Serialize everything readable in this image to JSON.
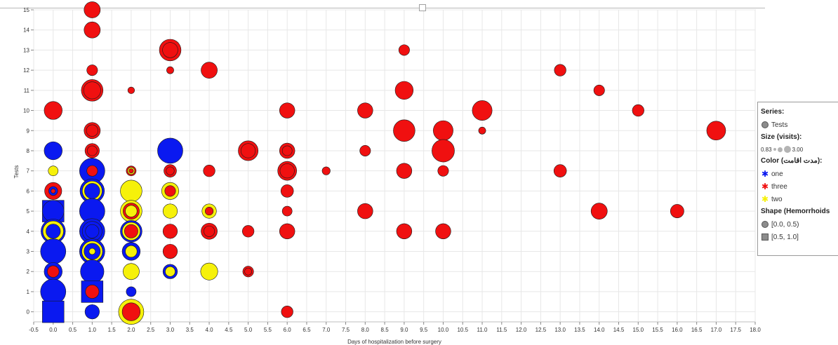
{
  "chart_data": {
    "type": "scatter",
    "xlabel": "Days of hospitalization before surgery",
    "ylabel": "Tests",
    "xlim": [
      -0.5,
      18.0
    ],
    "ylim": [
      -0.5,
      15
    ],
    "x_ticks": [
      "-0.5",
      "0.0",
      "0.5",
      "1.0",
      "1.5",
      "2.0",
      "2.5",
      "3.0",
      "3.5",
      "4.0",
      "4.5",
      "5.0",
      "5.5",
      "6.0",
      "6.5",
      "7.0",
      "7.5",
      "8.0",
      "8.5",
      "9.0",
      "9.5",
      "10.0",
      "10.5",
      "11.0",
      "11.5",
      "12.0",
      "12.5",
      "13.0",
      "13.5",
      "14.0",
      "14.5",
      "15.0",
      "15.5",
      "16.0",
      "16.5",
      "17.0",
      "17.5",
      "18.0"
    ],
    "y_ticks": [
      "0",
      "1",
      "2",
      "3",
      "4",
      "5",
      "6",
      "7",
      "8",
      "9",
      "10",
      "11",
      "12",
      "13",
      "14",
      "15"
    ],
    "grid": true,
    "legend_position": "right",
    "colors": {
      "one": "#0a19f0",
      "three": "#f01010",
      "two": "#f6f10a"
    },
    "size_range": [
      0.83,
      3.0
    ],
    "points": [
      {
        "x": 0,
        "y": 10,
        "c": "three",
        "s": 2.2
      },
      {
        "x": 0,
        "y": 8,
        "c": "one",
        "s": 2.2
      },
      {
        "x": 0,
        "y": 7,
        "c": "two",
        "s": 1.3
      },
      {
        "x": 0,
        "y": 6,
        "c": "three",
        "s": 2.1
      },
      {
        "x": 0,
        "y": 6,
        "c": "one",
        "s": 1.2
      },
      {
        "x": 0,
        "y": 6,
        "c": "three",
        "s": 0.7
      },
      {
        "x": 0,
        "y": 5,
        "c": "one",
        "s": 2.6,
        "shape": "square"
      },
      {
        "x": 0,
        "y": 5,
        "c": "one",
        "s": 2.6
      },
      {
        "x": 0,
        "y": 4,
        "c": "one",
        "s": 2.9
      },
      {
        "x": 0,
        "y": 4,
        "c": "two",
        "s": 2.5
      },
      {
        "x": 0,
        "y": 4,
        "c": "one",
        "s": 1.8
      },
      {
        "x": 0,
        "y": 3,
        "c": "one",
        "s": 3.0
      },
      {
        "x": 0,
        "y": 2,
        "c": "one",
        "s": 2.2
      },
      {
        "x": 0,
        "y": 2,
        "c": "three",
        "s": 1.5
      },
      {
        "x": 0,
        "y": 1,
        "c": "one",
        "s": 3.0
      },
      {
        "x": 0,
        "y": 0,
        "c": "one",
        "s": 2.6,
        "shape": "square"
      },
      {
        "x": 1,
        "y": 15,
        "c": "three",
        "s": 2.0
      },
      {
        "x": 1,
        "y": 14,
        "c": "three",
        "s": 2.0
      },
      {
        "x": 1,
        "y": 12,
        "c": "three",
        "s": 1.4
      },
      {
        "x": 1,
        "y": 11,
        "c": "three",
        "s": 2.6
      },
      {
        "x": 1,
        "y": 11,
        "c": "three",
        "s": 2.1
      },
      {
        "x": 1,
        "y": 9,
        "c": "three",
        "s": 2.0
      },
      {
        "x": 1,
        "y": 9,
        "c": "three",
        "s": 1.5
      },
      {
        "x": 1,
        "y": 8,
        "c": "three",
        "s": 1.8
      },
      {
        "x": 1,
        "y": 8,
        "c": "three",
        "s": 1.3
      },
      {
        "x": 1,
        "y": 7,
        "c": "one",
        "s": 3.0
      },
      {
        "x": 1,
        "y": 7,
        "c": "three",
        "s": 1.4
      },
      {
        "x": 1,
        "y": 6,
        "c": "one",
        "s": 2.9
      },
      {
        "x": 1,
        "y": 6,
        "c": "two",
        "s": 2.4
      },
      {
        "x": 1,
        "y": 6,
        "c": "one",
        "s": 1.9
      },
      {
        "x": 1,
        "y": 5,
        "c": "one",
        "s": 3.0
      },
      {
        "x": 1,
        "y": 4,
        "c": "one",
        "s": 3.0
      },
      {
        "x": 1,
        "y": 4,
        "c": "one",
        "s": 2.4
      },
      {
        "x": 1,
        "y": 4,
        "c": "one",
        "s": 1.7
      },
      {
        "x": 1,
        "y": 3,
        "c": "one",
        "s": 3.0
      },
      {
        "x": 1,
        "y": 3,
        "c": "two",
        "s": 2.5
      },
      {
        "x": 1,
        "y": 3,
        "c": "one",
        "s": 2.0
      },
      {
        "x": 1,
        "y": 3,
        "c": "two",
        "s": 0.9
      },
      {
        "x": 1,
        "y": 2,
        "c": "one",
        "s": 2.8
      },
      {
        "x": 1,
        "y": 1,
        "c": "one",
        "s": 2.6,
        "shape": "square"
      },
      {
        "x": 1,
        "y": 1,
        "c": "three",
        "s": 1.7
      },
      {
        "x": 1,
        "y": 0,
        "c": "one",
        "s": 1.8
      },
      {
        "x": 2,
        "y": 11,
        "c": "three",
        "s": 0.95
      },
      {
        "x": 2,
        "y": 7,
        "c": "three",
        "s": 1.3
      },
      {
        "x": 2,
        "y": 7,
        "c": "two",
        "s": 1.0
      },
      {
        "x": 2,
        "y": 7,
        "c": "three",
        "s": 0.7
      },
      {
        "x": 2,
        "y": 6,
        "c": "two",
        "s": 2.6
      },
      {
        "x": 2,
        "y": 5,
        "c": "two",
        "s": 2.6
      },
      {
        "x": 2,
        "y": 5,
        "c": "three",
        "s": 2.0
      },
      {
        "x": 2,
        "y": 5,
        "c": "two",
        "s": 1.5
      },
      {
        "x": 2,
        "y": 4,
        "c": "one",
        "s": 2.6
      },
      {
        "x": 2,
        "y": 4,
        "c": "two",
        "s": 2.2
      },
      {
        "x": 2,
        "y": 4,
        "c": "three",
        "s": 1.7
      },
      {
        "x": 2,
        "y": 3,
        "c": "one",
        "s": 2.2
      },
      {
        "x": 2,
        "y": 3,
        "c": "two",
        "s": 1.5
      },
      {
        "x": 2,
        "y": 2,
        "c": "two",
        "s": 2.0
      },
      {
        "x": 2,
        "y": 1,
        "c": "one",
        "s": 1.3
      },
      {
        "x": 2,
        "y": 0,
        "c": "two",
        "s": 3.0
      },
      {
        "x": 2,
        "y": 0,
        "c": "three",
        "s": 2.2
      },
      {
        "x": 3,
        "y": 13,
        "c": "three",
        "s": 2.6
      },
      {
        "x": 3,
        "y": 13,
        "c": "three",
        "s": 1.9
      },
      {
        "x": 3,
        "y": 12,
        "c": "three",
        "s": 1.0
      },
      {
        "x": 3,
        "y": 8,
        "c": "one",
        "s": 3.0
      },
      {
        "x": 3,
        "y": 7,
        "c": "three",
        "s": 1.6
      },
      {
        "x": 3,
        "y": 7,
        "c": "three",
        "s": 1.1
      },
      {
        "x": 3,
        "y": 6,
        "c": "two",
        "s": 2.1
      },
      {
        "x": 3,
        "y": 6,
        "c": "three",
        "s": 1.4
      },
      {
        "x": 3,
        "y": 5,
        "c": "two",
        "s": 1.8
      },
      {
        "x": 3,
        "y": 4,
        "c": "three",
        "s": 1.8
      },
      {
        "x": 3,
        "y": 3,
        "c": "three",
        "s": 1.8
      },
      {
        "x": 3,
        "y": 2,
        "c": "one",
        "s": 1.8
      },
      {
        "x": 3,
        "y": 2,
        "c": "two",
        "s": 1.3
      },
      {
        "x": 4,
        "y": 12,
        "c": "three",
        "s": 2.0
      },
      {
        "x": 4,
        "y": 7,
        "c": "three",
        "s": 1.5
      },
      {
        "x": 4,
        "y": 5,
        "c": "two",
        "s": 1.8
      },
      {
        "x": 4,
        "y": 5,
        "c": "three",
        "s": 1.1
      },
      {
        "x": 4,
        "y": 4,
        "c": "three",
        "s": 2.0
      },
      {
        "x": 4,
        "y": 4,
        "c": "three",
        "s": 1.4
      },
      {
        "x": 4,
        "y": 2,
        "c": "two",
        "s": 2.1
      },
      {
        "x": 5,
        "y": 8,
        "c": "three",
        "s": 2.4
      },
      {
        "x": 5,
        "y": 8,
        "c": "three",
        "s": 1.8
      },
      {
        "x": 5,
        "y": 4,
        "c": "three",
        "s": 1.5
      },
      {
        "x": 5,
        "y": 2,
        "c": "three",
        "s": 1.4
      },
      {
        "x": 5,
        "y": 2,
        "c": "three",
        "s": 1.0
      },
      {
        "x": 6,
        "y": 10,
        "c": "three",
        "s": 1.9
      },
      {
        "x": 6,
        "y": 8,
        "c": "three",
        "s": 1.9
      },
      {
        "x": 6,
        "y": 8,
        "c": "three",
        "s": 1.3
      },
      {
        "x": 6,
        "y": 7,
        "c": "three",
        "s": 2.3
      },
      {
        "x": 6,
        "y": 7,
        "c": "three",
        "s": 1.8
      },
      {
        "x": 6,
        "y": 6,
        "c": "three",
        "s": 1.6
      },
      {
        "x": 6,
        "y": 5,
        "c": "three",
        "s": 1.3
      },
      {
        "x": 6,
        "y": 4,
        "c": "three",
        "s": 1.9
      },
      {
        "x": 6,
        "y": 0,
        "c": "three",
        "s": 1.5
      },
      {
        "x": 7,
        "y": 7,
        "c": "three",
        "s": 1.1
      },
      {
        "x": 8,
        "y": 10,
        "c": "three",
        "s": 1.9
      },
      {
        "x": 8,
        "y": 8,
        "c": "three",
        "s": 1.4
      },
      {
        "x": 8,
        "y": 5,
        "c": "three",
        "s": 1.9
      },
      {
        "x": 9,
        "y": 13,
        "c": "three",
        "s": 1.4
      },
      {
        "x": 9,
        "y": 11,
        "c": "three",
        "s": 2.2
      },
      {
        "x": 9,
        "y": 9,
        "c": "three",
        "s": 2.6
      },
      {
        "x": 9,
        "y": 7,
        "c": "three",
        "s": 1.9
      },
      {
        "x": 9,
        "y": 4,
        "c": "three",
        "s": 1.9
      },
      {
        "x": 10,
        "y": 9,
        "c": "three",
        "s": 2.4
      },
      {
        "x": 10,
        "y": 8,
        "c": "three",
        "s": 2.7
      },
      {
        "x": 10,
        "y": 7,
        "c": "three",
        "s": 1.4
      },
      {
        "x": 10,
        "y": 4,
        "c": "three",
        "s": 1.9
      },
      {
        "x": 11,
        "y": 10,
        "c": "three",
        "s": 2.4
      },
      {
        "x": 11,
        "y": 9,
        "c": "three",
        "s": 1.0
      },
      {
        "x": 13,
        "y": 12,
        "c": "three",
        "s": 1.5
      },
      {
        "x": 13,
        "y": 7,
        "c": "three",
        "s": 1.6
      },
      {
        "x": 14,
        "y": 11,
        "c": "three",
        "s": 1.4
      },
      {
        "x": 14,
        "y": 5,
        "c": "three",
        "s": 2.0
      },
      {
        "x": 15,
        "y": 10,
        "c": "three",
        "s": 1.5
      },
      {
        "x": 16,
        "y": 5,
        "c": "three",
        "s": 1.7
      },
      {
        "x": 17,
        "y": 9,
        "c": "three",
        "s": 2.3
      }
    ]
  },
  "legend": {
    "series_title": "Series:",
    "series_item": "Tests",
    "size_title": "Size (visits):",
    "size_min": "0.83",
    "size_max": "3.00",
    "color_title": "Color (مدت اقامت):",
    "color_items": [
      "one",
      "three",
      "two"
    ],
    "shape_title": "Shape (Hemorrhoids",
    "shape_items": [
      "[0.0, 0.5)",
      "[0.5, 1.0]"
    ],
    "colors": {
      "one": "#0a19f0",
      "three": "#f01010",
      "two": "#f6f10a"
    }
  }
}
